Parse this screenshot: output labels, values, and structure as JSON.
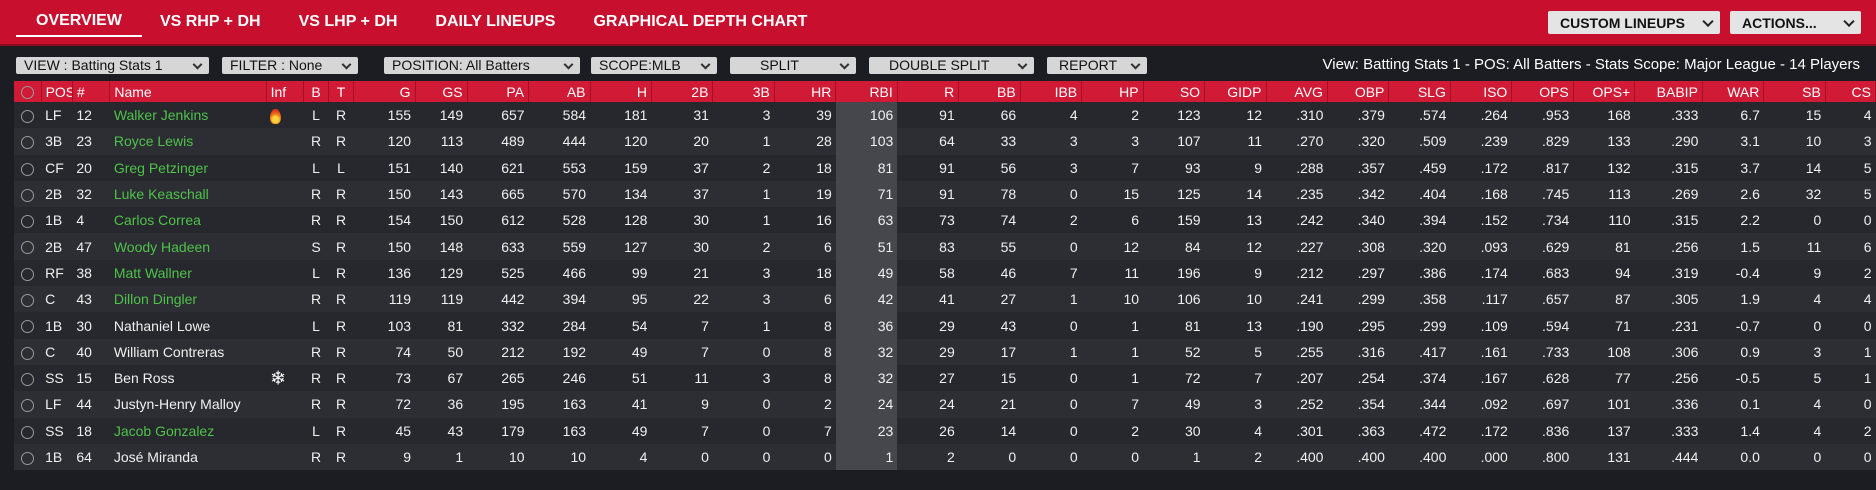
{
  "nav": {
    "tabs": [
      "OVERVIEW",
      "VS RHP + DH",
      "VS LHP + DH",
      "DAILY LINEUPS",
      "GRAPHICAL DEPTH CHART"
    ],
    "custom_lineups": "CUSTOM LINEUPS",
    "actions": "ACTIONS..."
  },
  "filters": {
    "view": "VIEW : Batting Stats 1",
    "filter": "FILTER : None",
    "position": "POSITION: All Batters",
    "scope": "SCOPE:MLB",
    "split": "SPLIT",
    "double_split": "DOUBLE SPLIT",
    "report": "REPORT",
    "view_info": "View: Batting Stats 1 - POS: All Batters - Stats Scope: Major League - 14 Players"
  },
  "columns": [
    "POS",
    "#",
    "Name",
    "Inf",
    "B",
    "T",
    "G",
    "GS",
    "PA",
    "AB",
    "H",
    "2B",
    "3B",
    "HR",
    "RBI",
    "R",
    "BB",
    "IBB",
    "HP",
    "SO",
    "GIDP",
    "AVG",
    "OBP",
    "SLG",
    "ISO",
    "OPS",
    "OPS+",
    "BABIP",
    "WAR",
    "SB",
    "CS"
  ],
  "rows": [
    {
      "pos": "LF",
      "num": "12",
      "name": "Walker Jenkins",
      "inf": "fire",
      "b": "L",
      "t": "R",
      "g": "155",
      "gs": "149",
      "pa": "657",
      "ab": "584",
      "h": "181",
      "d": "31",
      "tr": "3",
      "hr": "39",
      "rbi": "106",
      "r": "91",
      "bb": "66",
      "ibb": "4",
      "hp": "2",
      "so": "123",
      "gidp": "12",
      "avg": ".310",
      "obp": ".379",
      "slg": ".574",
      "iso": ".264",
      "ops": ".953",
      "opsp": "168",
      "babip": ".333",
      "war": "6.7",
      "sb": "15",
      "cs": "4",
      "link": true
    },
    {
      "pos": "3B",
      "num": "23",
      "name": "Royce Lewis",
      "inf": "",
      "b": "R",
      "t": "R",
      "g": "120",
      "gs": "113",
      "pa": "489",
      "ab": "444",
      "h": "120",
      "d": "20",
      "tr": "1",
      "hr": "28",
      "rbi": "103",
      "r": "64",
      "bb": "33",
      "ibb": "3",
      "hp": "3",
      "so": "107",
      "gidp": "11",
      "avg": ".270",
      "obp": ".320",
      "slg": ".509",
      "iso": ".239",
      "ops": ".829",
      "opsp": "133",
      "babip": ".290",
      "war": "3.1",
      "sb": "10",
      "cs": "3",
      "link": true
    },
    {
      "pos": "CF",
      "num": "20",
      "name": "Greg Petzinger",
      "inf": "",
      "b": "L",
      "t": "L",
      "g": "151",
      "gs": "140",
      "pa": "621",
      "ab": "553",
      "h": "159",
      "d": "37",
      "tr": "2",
      "hr": "18",
      "rbi": "81",
      "r": "91",
      "bb": "56",
      "ibb": "3",
      "hp": "7",
      "so": "93",
      "gidp": "9",
      "avg": ".288",
      "obp": ".357",
      "slg": ".459",
      "iso": ".172",
      "ops": ".817",
      "opsp": "132",
      "babip": ".315",
      "war": "3.7",
      "sb": "14",
      "cs": "5",
      "link": true
    },
    {
      "pos": "2B",
      "num": "32",
      "name": "Luke Keaschall",
      "inf": "",
      "b": "R",
      "t": "R",
      "g": "150",
      "gs": "143",
      "pa": "665",
      "ab": "570",
      "h": "134",
      "d": "37",
      "tr": "1",
      "hr": "19",
      "rbi": "71",
      "r": "91",
      "bb": "78",
      "ibb": "0",
      "hp": "15",
      "so": "125",
      "gidp": "14",
      "avg": ".235",
      "obp": ".342",
      "slg": ".404",
      "iso": ".168",
      "ops": ".745",
      "opsp": "113",
      "babip": ".269",
      "war": "2.6",
      "sb": "32",
      "cs": "5",
      "link": true
    },
    {
      "pos": "1B",
      "num": "4",
      "name": "Carlos Correa",
      "inf": "",
      "b": "R",
      "t": "R",
      "g": "154",
      "gs": "150",
      "pa": "612",
      "ab": "528",
      "h": "128",
      "d": "30",
      "tr": "1",
      "hr": "16",
      "rbi": "63",
      "r": "73",
      "bb": "74",
      "ibb": "2",
      "hp": "6",
      "so": "159",
      "gidp": "13",
      "avg": ".242",
      "obp": ".340",
      "slg": ".394",
      "iso": ".152",
      "ops": ".734",
      "opsp": "110",
      "babip": ".315",
      "war": "2.2",
      "sb": "0",
      "cs": "0",
      "link": true
    },
    {
      "pos": "2B",
      "num": "47",
      "name": "Woody Hadeen",
      "inf": "",
      "b": "S",
      "t": "R",
      "g": "150",
      "gs": "148",
      "pa": "633",
      "ab": "559",
      "h": "127",
      "d": "30",
      "tr": "2",
      "hr": "6",
      "rbi": "51",
      "r": "83",
      "bb": "55",
      "ibb": "0",
      "hp": "12",
      "so": "84",
      "gidp": "12",
      "avg": ".227",
      "obp": ".308",
      "slg": ".320",
      "iso": ".093",
      "ops": ".629",
      "opsp": "81",
      "babip": ".256",
      "war": "1.5",
      "sb": "11",
      "cs": "6",
      "link": true
    },
    {
      "pos": "RF",
      "num": "38",
      "name": "Matt Wallner",
      "inf": "",
      "b": "L",
      "t": "R",
      "g": "136",
      "gs": "129",
      "pa": "525",
      "ab": "466",
      "h": "99",
      "d": "21",
      "tr": "3",
      "hr": "18",
      "rbi": "49",
      "r": "58",
      "bb": "46",
      "ibb": "7",
      "hp": "11",
      "so": "196",
      "gidp": "9",
      "avg": ".212",
      "obp": ".297",
      "slg": ".386",
      "iso": ".174",
      "ops": ".683",
      "opsp": "94",
      "babip": ".319",
      "war": "-0.4",
      "sb": "9",
      "cs": "2",
      "link": true
    },
    {
      "pos": "C",
      "num": "43",
      "name": "Dillon Dingler",
      "inf": "",
      "b": "R",
      "t": "R",
      "g": "119",
      "gs": "119",
      "pa": "442",
      "ab": "394",
      "h": "95",
      "d": "22",
      "tr": "3",
      "hr": "6",
      "rbi": "42",
      "r": "41",
      "bb": "27",
      "ibb": "1",
      "hp": "10",
      "so": "106",
      "gidp": "10",
      "avg": ".241",
      "obp": ".299",
      "slg": ".358",
      "iso": ".117",
      "ops": ".657",
      "opsp": "87",
      "babip": ".305",
      "war": "1.9",
      "sb": "4",
      "cs": "4",
      "link": true
    },
    {
      "pos": "1B",
      "num": "30",
      "name": "Nathaniel Lowe",
      "inf": "",
      "b": "L",
      "t": "R",
      "g": "103",
      "gs": "81",
      "pa": "332",
      "ab": "284",
      "h": "54",
      "d": "7",
      "tr": "1",
      "hr": "8",
      "rbi": "36",
      "r": "29",
      "bb": "43",
      "ibb": "0",
      "hp": "1",
      "so": "81",
      "gidp": "13",
      "avg": ".190",
      "obp": ".295",
      "slg": ".299",
      "iso": ".109",
      "ops": ".594",
      "opsp": "71",
      "babip": ".231",
      "war": "-0.7",
      "sb": "0",
      "cs": "0",
      "link": false
    },
    {
      "pos": "C",
      "num": "40",
      "name": "William Contreras",
      "inf": "",
      "b": "R",
      "t": "R",
      "g": "74",
      "gs": "50",
      "pa": "212",
      "ab": "192",
      "h": "49",
      "d": "7",
      "tr": "0",
      "hr": "8",
      "rbi": "32",
      "r": "29",
      "bb": "17",
      "ibb": "1",
      "hp": "1",
      "so": "52",
      "gidp": "5",
      "avg": ".255",
      "obp": ".316",
      "slg": ".417",
      "iso": ".161",
      "ops": ".733",
      "opsp": "108",
      "babip": ".306",
      "war": "0.9",
      "sb": "3",
      "cs": "1",
      "link": false
    },
    {
      "pos": "SS",
      "num": "15",
      "name": "Ben Ross",
      "inf": "snow",
      "b": "R",
      "t": "R",
      "g": "73",
      "gs": "67",
      "pa": "265",
      "ab": "246",
      "h": "51",
      "d": "11",
      "tr": "3",
      "hr": "8",
      "rbi": "32",
      "r": "27",
      "bb": "15",
      "ibb": "0",
      "hp": "1",
      "so": "72",
      "gidp": "7",
      "avg": ".207",
      "obp": ".254",
      "slg": ".374",
      "iso": ".167",
      "ops": ".628",
      "opsp": "77",
      "babip": ".256",
      "war": "-0.5",
      "sb": "5",
      "cs": "1",
      "link": false
    },
    {
      "pos": "LF",
      "num": "44",
      "name": "Justyn-Henry Malloy",
      "inf": "",
      "b": "R",
      "t": "R",
      "g": "72",
      "gs": "36",
      "pa": "195",
      "ab": "163",
      "h": "41",
      "d": "9",
      "tr": "0",
      "hr": "2",
      "rbi": "24",
      "r": "24",
      "bb": "21",
      "ibb": "0",
      "hp": "7",
      "so": "49",
      "gidp": "3",
      "avg": ".252",
      "obp": ".354",
      "slg": ".344",
      "iso": ".092",
      "ops": ".697",
      "opsp": "101",
      "babip": ".336",
      "war": "0.1",
      "sb": "4",
      "cs": "0",
      "link": false
    },
    {
      "pos": "SS",
      "num": "18",
      "name": "Jacob Gonzalez",
      "inf": "",
      "b": "L",
      "t": "R",
      "g": "45",
      "gs": "43",
      "pa": "179",
      "ab": "163",
      "h": "49",
      "d": "7",
      "tr": "0",
      "hr": "7",
      "rbi": "23",
      "r": "26",
      "bb": "14",
      "ibb": "0",
      "hp": "2",
      "so": "30",
      "gidp": "4",
      "avg": ".301",
      "obp": ".363",
      "slg": ".472",
      "iso": ".172",
      "ops": ".836",
      "opsp": "137",
      "babip": ".333",
      "war": "1.4",
      "sb": "4",
      "cs": "2",
      "link": true
    },
    {
      "pos": "1B",
      "num": "64",
      "name": "José Miranda",
      "inf": "",
      "b": "R",
      "t": "R",
      "g": "9",
      "gs": "1",
      "pa": "10",
      "ab": "10",
      "h": "4",
      "d": "0",
      "tr": "0",
      "hr": "0",
      "rbi": "1",
      "r": "2",
      "bb": "0",
      "ibb": "0",
      "hp": "0",
      "so": "1",
      "gidp": "2",
      "avg": ".400",
      "obp": ".400",
      "slg": ".400",
      "iso": ".000",
      "ops": ".800",
      "opsp": "131",
      "babip": ".444",
      "war": "0.0",
      "sb": "0",
      "cs": "0",
      "link": false
    }
  ]
}
